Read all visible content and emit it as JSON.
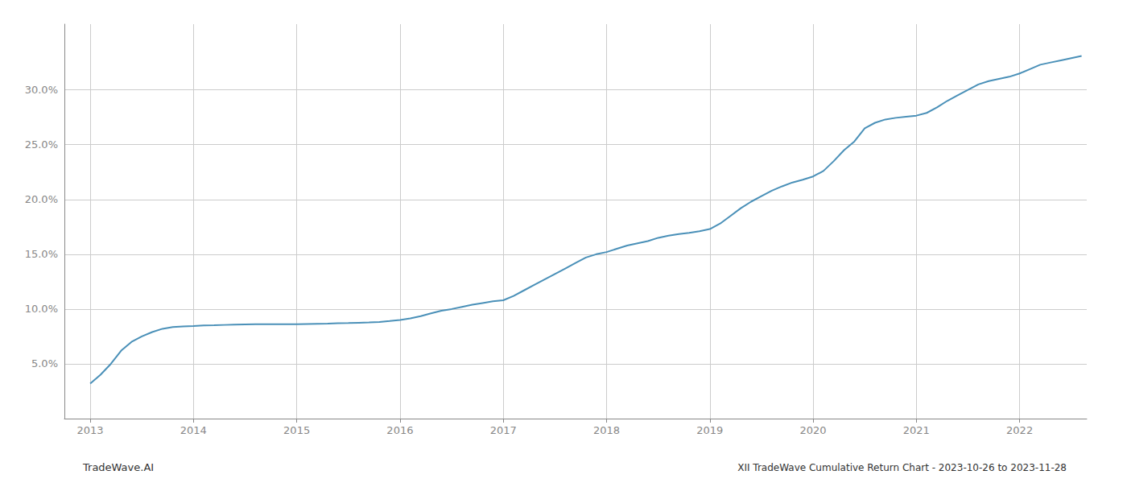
{
  "chart_data": {
    "type": "line",
    "title": "XII TradeWave Cumulative Return Chart - 2023-10-26 to 2023-11-28",
    "annotations": [
      "TradeWave.AI"
    ],
    "color": "#4a90b8",
    "x": [
      2013.0,
      2013.1,
      2013.2,
      2013.3,
      2013.4,
      2013.5,
      2013.6,
      2013.7,
      2013.8,
      2013.9,
      2014.0,
      2014.1,
      2014.2,
      2014.3,
      2014.4,
      2014.5,
      2014.6,
      2014.7,
      2014.8,
      2014.9,
      2015.0,
      2015.1,
      2015.2,
      2015.3,
      2015.4,
      2015.5,
      2015.6,
      2015.7,
      2015.8,
      2015.9,
      2016.0,
      2016.1,
      2016.2,
      2016.3,
      2016.4,
      2016.5,
      2016.6,
      2016.7,
      2016.8,
      2016.9,
      2017.0,
      2017.1,
      2017.2,
      2017.3,
      2017.4,
      2017.5,
      2017.6,
      2017.7,
      2017.8,
      2017.9,
      2018.0,
      2018.1,
      2018.2,
      2018.3,
      2018.4,
      2018.5,
      2018.6,
      2018.7,
      2018.8,
      2018.9,
      2019.0,
      2019.1,
      2019.2,
      2019.3,
      2019.4,
      2019.5,
      2019.6,
      2019.7,
      2019.8,
      2019.9,
      2020.0,
      2020.1,
      2020.2,
      2020.3,
      2020.4,
      2020.5,
      2020.6,
      2020.7,
      2020.8,
      2020.9,
      2021.0,
      2021.1,
      2021.2,
      2021.3,
      2021.4,
      2021.5,
      2021.6,
      2021.7,
      2021.8,
      2021.9,
      2022.0,
      2022.1,
      2022.2,
      2022.3,
      2022.4,
      2022.5,
      2022.6
    ],
    "values": [
      3.2,
      4.0,
      5.0,
      6.2,
      7.0,
      7.5,
      7.9,
      8.2,
      8.35,
      8.42,
      8.45,
      8.5,
      8.52,
      8.55,
      8.58,
      8.6,
      8.61,
      8.62,
      8.62,
      8.61,
      8.61,
      8.63,
      8.65,
      8.67,
      8.7,
      8.72,
      8.75,
      8.78,
      8.82,
      8.9,
      9.0,
      9.15,
      9.35,
      9.6,
      9.85,
      10.0,
      10.2,
      10.4,
      10.55,
      10.7,
      10.8,
      11.2,
      11.7,
      12.2,
      12.7,
      13.2,
      13.7,
      14.2,
      14.7,
      15.0,
      15.2,
      15.5,
      15.8,
      16.0,
      16.2,
      16.5,
      16.7,
      16.85,
      16.95,
      17.1,
      17.3,
      17.8,
      18.5,
      19.2,
      19.8,
      20.3,
      20.8,
      21.2,
      21.55,
      21.8,
      22.1,
      22.6,
      23.5,
      24.5,
      25.3,
      26.5,
      27.0,
      27.3,
      27.45,
      27.55,
      27.65,
      27.9,
      28.4,
      29.0,
      29.5,
      30.0,
      30.5,
      30.8,
      31.0,
      31.2,
      31.5,
      31.9,
      32.3,
      32.5,
      32.7,
      32.9,
      33.1
    ],
    "xlim": [
      2012.75,
      2022.65
    ],
    "xticks": [
      2013,
      2014,
      2015,
      2016,
      2017,
      2018,
      2019,
      2020,
      2021,
      2022
    ],
    "ylim": [
      0,
      36
    ],
    "yticks": [
      {
        "value": 5.0,
        "label": "5.0%"
      },
      {
        "value": 10.0,
        "label": "10.0%"
      },
      {
        "value": 15.0,
        "label": "15.0%"
      },
      {
        "value": 20.0,
        "label": "20.0%"
      },
      {
        "value": 25.0,
        "label": "25.0%"
      },
      {
        "value": 30.0,
        "label": "30.0%"
      }
    ],
    "grid": true
  }
}
